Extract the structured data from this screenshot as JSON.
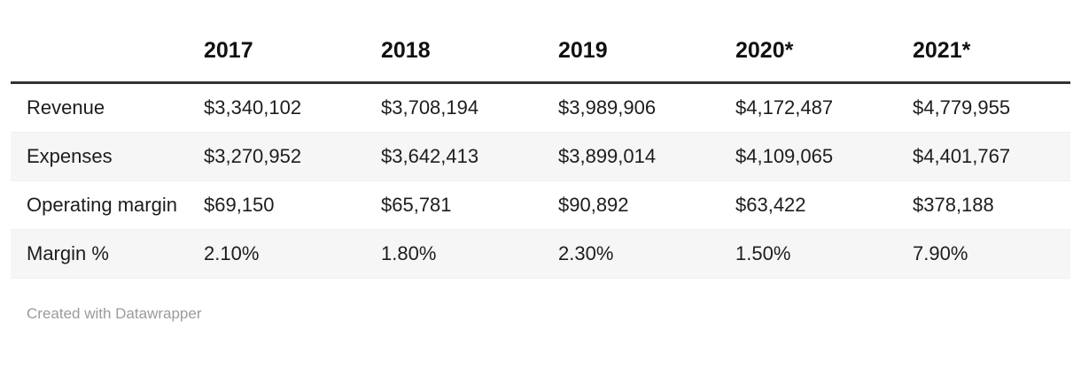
{
  "chart_data": {
    "type": "table",
    "columns": [
      "",
      "2017",
      "2018",
      "2019",
      "2020*",
      "2021*"
    ],
    "rows": [
      {
        "label": "Revenue",
        "values": [
          "$3,340,102",
          "$3,708,194",
          "$3,989,906",
          "$4,172,487",
          "$4,779,955"
        ]
      },
      {
        "label": "Expenses",
        "values": [
          "$3,270,952",
          "$3,642,413",
          "$3,899,014",
          "$4,109,065",
          "$4,401,767"
        ]
      },
      {
        "label": "Operating margin",
        "values": [
          "$69,150",
          "$65,781",
          "$90,892",
          "$63,422",
          "$378,188"
        ]
      },
      {
        "label": "Margin %",
        "values": [
          "2.10%",
          "1.80%",
          "2.30%",
          "1.50%",
          "7.90%"
        ]
      }
    ],
    "layout": {
      "striped_rows": true,
      "header_rule": true
    }
  },
  "footer": {
    "credit": "Created with Datawrapper"
  },
  "colors": {
    "background": "#ffffff",
    "text": "#1d1d1d",
    "header_rule": "#333333",
    "row_alt": "#f6f6f6",
    "footer_text": "#9b9b9b"
  }
}
